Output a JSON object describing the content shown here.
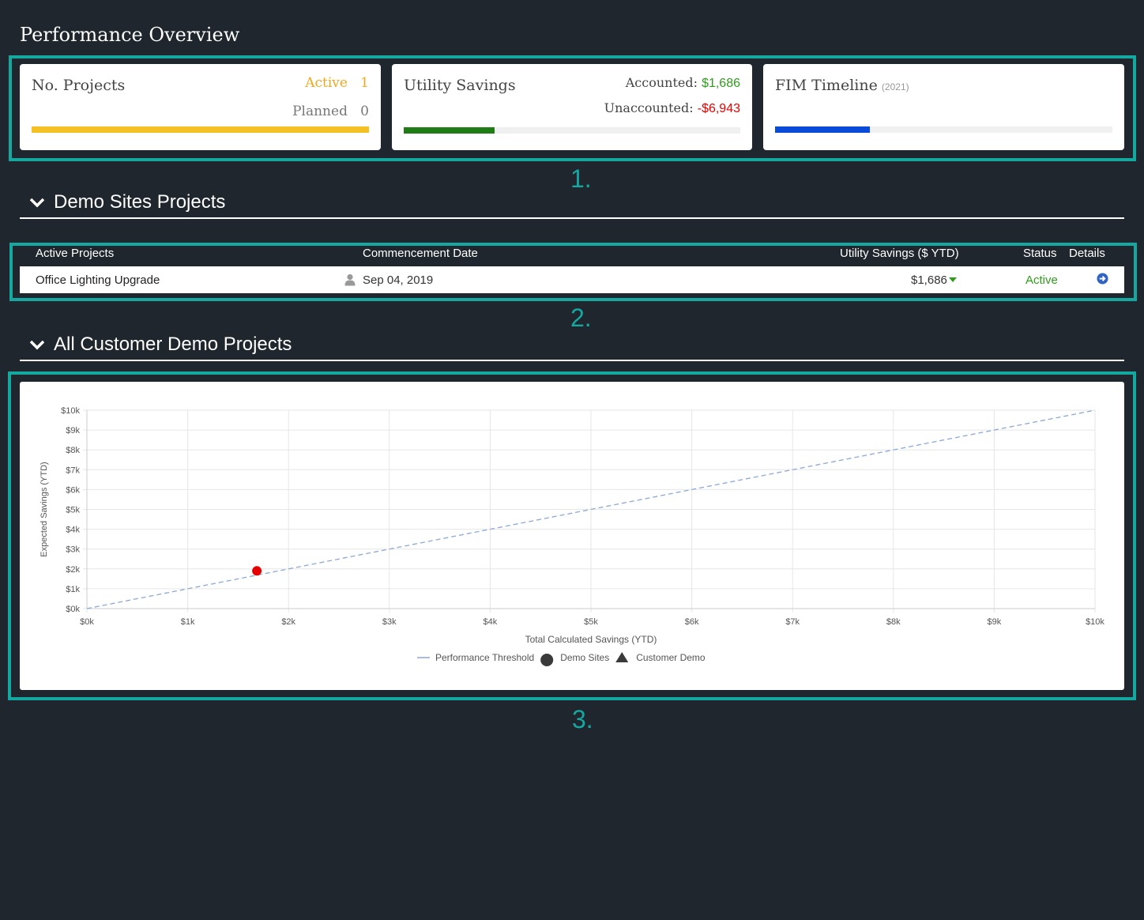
{
  "page": {
    "title": "Performance Overview"
  },
  "markers": {
    "m1": "1.",
    "m2": "2.",
    "m3": "3."
  },
  "cards": {
    "projects": {
      "title": "No. Projects",
      "active_label": "Active",
      "active_count": "1",
      "planned_label": "Planned",
      "planned_count": "0",
      "progress_fraction": 1.0,
      "bar_color": "#f5c024"
    },
    "savings": {
      "title": "Utility Savings",
      "accounted_label": "Accounted:",
      "accounted_value": "$1,686",
      "unaccounted_label": "Unaccounted:",
      "unaccounted_value": "-$6,943",
      "progress_fraction": 0.27,
      "bar_color": "#1e7d14",
      "accounted_color": "#2e9d1a",
      "unaccounted_color": "#e60000"
    },
    "fim": {
      "title": "FIM Timeline",
      "year": "(2021)",
      "progress_fraction": 0.28,
      "bar_color": "#0a4ad8"
    }
  },
  "sections": {
    "demo_sites": {
      "title": "Demo Sites Projects"
    },
    "all_customer": {
      "title": "All Customer Demo Projects"
    }
  },
  "table": {
    "headers": {
      "project": "Active Projects",
      "date": "Commencement Date",
      "savings": "Utility Savings ($ YTD)",
      "status": "Status",
      "details": "Details"
    },
    "rows": [
      {
        "project": "Office Lighting Upgrade",
        "date": "Sep 04, 2019",
        "savings": "$1,686",
        "status": "Active",
        "status_color": "#2e9d1a",
        "user_icon": "user-icon",
        "trend_icon": "caret-down-icon",
        "details_icon": "arrow-circle-right-icon"
      }
    ]
  },
  "chart_data": {
    "type": "scatter",
    "xlabel": "Total Calculated Savings (YTD)",
    "ylabel": "Expected Savings (YTD)",
    "xlim": [
      0,
      10000
    ],
    "ylim": [
      0,
      10000
    ],
    "x_ticks": [
      "$0k",
      "$1k",
      "$2k",
      "$3k",
      "$4k",
      "$5k",
      "$6k",
      "$7k",
      "$8k",
      "$9k",
      "$10k"
    ],
    "y_ticks": [
      "$0k",
      "$1k",
      "$2k",
      "$3k",
      "$4k",
      "$5k",
      "$6k",
      "$7k",
      "$8k",
      "$9k",
      "$10k"
    ],
    "grid": true,
    "legend_placement": "bottom",
    "series": [
      {
        "name": "Performance Threshold",
        "kind": "line",
        "style": "dashed",
        "color": "#8aa9d6",
        "points": [
          [
            0,
            0
          ],
          [
            10000,
            10000
          ]
        ]
      },
      {
        "name": "Demo Sites",
        "kind": "scatter",
        "marker": "circle",
        "color": "#e60000",
        "points": [
          [
            1686,
            1900
          ]
        ]
      },
      {
        "name": "Customer Demo",
        "kind": "scatter",
        "marker": "triangle",
        "color": "#333333",
        "points": []
      }
    ]
  }
}
